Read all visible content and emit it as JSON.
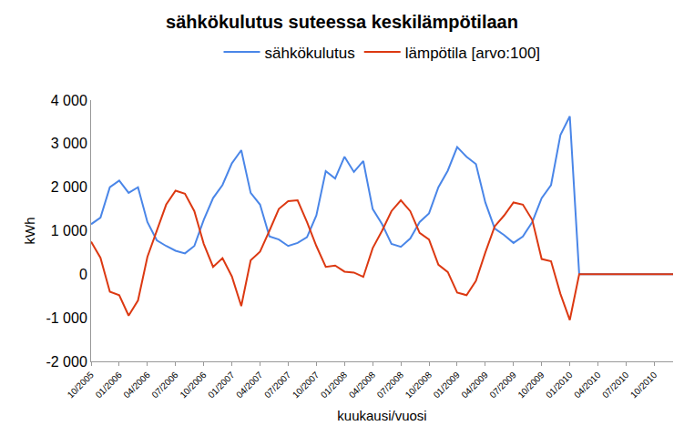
{
  "chart_data": {
    "type": "line",
    "title": "sähkökulutus suteessa keskilämpötilaan",
    "x_label": "kuukausi/vuosi",
    "y_label": "kWh",
    "categories": [
      "10/2005",
      null,
      null,
      "01/2006",
      null,
      null,
      "04/2006",
      null,
      null,
      "07/2006",
      null,
      null,
      "10/2006",
      null,
      null,
      "01/2007",
      null,
      null,
      "04/2007",
      null,
      null,
      "07/2007",
      null,
      null,
      "10/2007",
      null,
      null,
      "01/2008",
      null,
      null,
      "04/2008",
      null,
      null,
      "07/2008",
      null,
      null,
      "10/2008",
      null,
      null,
      "01/2009",
      null,
      null,
      "04/2009",
      null,
      null,
      "07/2009",
      null,
      null,
      "10/2009",
      null,
      null,
      "01/2010",
      null,
      null,
      "04/2010",
      null,
      null,
      "07/2010",
      null,
      null,
      "10/2010",
      null,
      null
    ],
    "series": [
      {
        "name": "sähkökulutus",
        "color": "#4a86e8",
        "values": [
          1150,
          1300,
          2000,
          2150,
          1870,
          2000,
          1200,
          780,
          650,
          540,
          480,
          650,
          1250,
          1750,
          2050,
          2550,
          2850,
          1870,
          1600,
          870,
          800,
          650,
          720,
          850,
          1350,
          2370,
          2200,
          2700,
          2350,
          2600,
          1500,
          1150,
          700,
          630,
          820,
          1200,
          1400,
          2000,
          2380,
          2920,
          2700,
          2530,
          1650,
          1050,
          900,
          720,
          870,
          1200,
          1750,
          2050,
          3200,
          3630,
          0,
          0,
          0,
          0,
          0,
          0,
          0,
          0,
          0,
          0,
          0
        ]
      },
      {
        "name": "lämpötila [arvo:100]",
        "color": "#dc3912",
        "values": [
          750,
          380,
          -400,
          -480,
          -950,
          -600,
          400,
          1000,
          1600,
          1920,
          1850,
          1450,
          700,
          170,
          370,
          -50,
          -730,
          320,
          520,
          1000,
          1500,
          1680,
          1700,
          1200,
          650,
          170,
          200,
          60,
          40,
          -60,
          600,
          1000,
          1450,
          1700,
          1450,
          950,
          800,
          220,
          50,
          -420,
          -480,
          -150,
          500,
          1100,
          1350,
          1650,
          1600,
          1250,
          350,
          300,
          -450,
          -1050,
          0,
          0,
          0,
          0,
          0,
          0,
          0,
          0,
          0,
          0,
          0
        ]
      }
    ],
    "ylim": [
      -2000,
      4000
    ],
    "yticks": [
      {
        "value": -2000,
        "label": "-2 000"
      },
      {
        "value": -1000,
        "label": "-1 000"
      },
      0,
      {
        "value": 1000,
        "label": "1 000"
      },
      {
        "value": 2000,
        "label": "2 000"
      },
      {
        "value": 3000,
        "label": "3 000"
      },
      {
        "value": 4000,
        "label": "4 000"
      }
    ],
    "grid": false,
    "legend": "top"
  }
}
